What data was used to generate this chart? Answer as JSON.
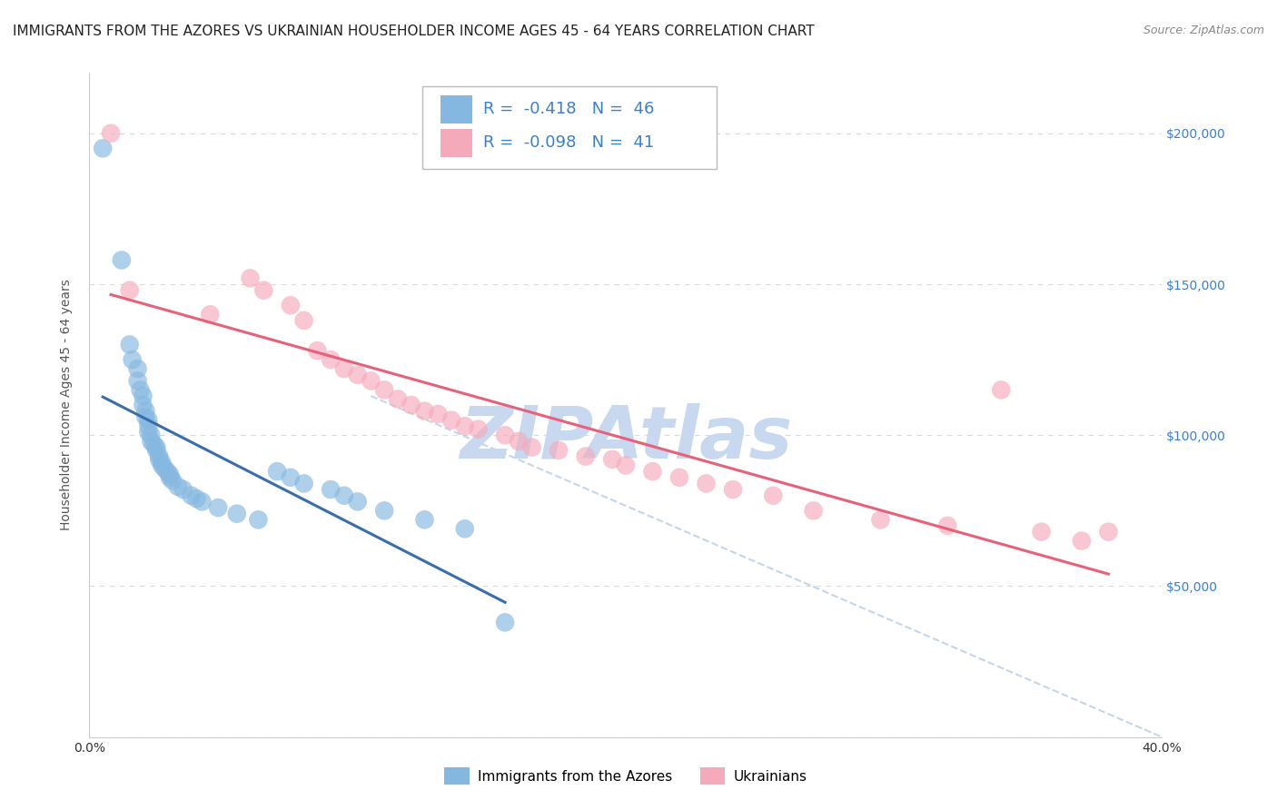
{
  "title": "IMMIGRANTS FROM THE AZORES VS UKRAINIAN HOUSEHOLDER INCOME AGES 45 - 64 YEARS CORRELATION CHART",
  "source": "Source: ZipAtlas.com",
  "ylabel": "Householder Income Ages 45 - 64 years",
  "xmin": 0.0,
  "xmax": 0.4,
  "ymin": 0,
  "ymax": 220000,
  "yticks": [
    0,
    50000,
    100000,
    150000,
    200000
  ],
  "ytick_labels": [
    "",
    "$50,000",
    "$100,000",
    "$150,000",
    "$200,000"
  ],
  "xticks": [
    0.0,
    0.05,
    0.1,
    0.15,
    0.2,
    0.25,
    0.3,
    0.35,
    0.4
  ],
  "xtick_labels": [
    "0.0%",
    "",
    "",
    "",
    "",
    "",
    "",
    "",
    "40.0%"
  ],
  "azores_color": "#85b8e0",
  "ukrainian_color": "#f5aabc",
  "azores_line_color": "#3a6eaa",
  "ukrainian_line_color": "#e8607a",
  "watermark": "ZIPAtlas",
  "watermark_color": "#c8d8ee",
  "background_color": "#ffffff",
  "grid_color": "#d0dce8",
  "azores_x": [
    0.005,
    0.012,
    0.015,
    0.016,
    0.018,
    0.018,
    0.019,
    0.02,
    0.02,
    0.021,
    0.021,
    0.022,
    0.022,
    0.022,
    0.023,
    0.023,
    0.024,
    0.025,
    0.025,
    0.026,
    0.026,
    0.027,
    0.027,
    0.028,
    0.029,
    0.03,
    0.03,
    0.031,
    0.033,
    0.035,
    0.038,
    0.04,
    0.042,
    0.048,
    0.055,
    0.063,
    0.07,
    0.075,
    0.08,
    0.09,
    0.095,
    0.1,
    0.11,
    0.125,
    0.14,
    0.155
  ],
  "azores_y": [
    195000,
    158000,
    130000,
    125000,
    122000,
    118000,
    115000,
    113000,
    110000,
    108000,
    106000,
    105000,
    103000,
    101000,
    100000,
    98000,
    97000,
    96000,
    95000,
    93000,
    92000,
    91000,
    90000,
    89000,
    88000,
    87000,
    86000,
    85000,
    83000,
    82000,
    80000,
    79000,
    78000,
    76000,
    74000,
    72000,
    88000,
    86000,
    84000,
    82000,
    80000,
    78000,
    75000,
    72000,
    69000,
    38000
  ],
  "ukrainian_x": [
    0.008,
    0.015,
    0.045,
    0.06,
    0.065,
    0.075,
    0.08,
    0.085,
    0.09,
    0.095,
    0.1,
    0.105,
    0.11,
    0.115,
    0.12,
    0.125,
    0.13,
    0.135,
    0.14,
    0.145,
    0.155,
    0.16,
    0.165,
    0.175,
    0.185,
    0.195,
    0.2,
    0.21,
    0.22,
    0.23,
    0.24,
    0.255,
    0.27,
    0.295,
    0.32,
    0.34,
    0.355,
    0.37,
    0.38
  ],
  "ukrainian_y": [
    200000,
    148000,
    140000,
    152000,
    148000,
    143000,
    138000,
    128000,
    125000,
    122000,
    120000,
    118000,
    115000,
    112000,
    110000,
    108000,
    107000,
    105000,
    103000,
    102000,
    100000,
    98000,
    96000,
    95000,
    93000,
    92000,
    90000,
    88000,
    86000,
    84000,
    82000,
    80000,
    75000,
    72000,
    70000,
    115000,
    68000,
    65000,
    68000
  ],
  "ref_line_x": [
    0.105,
    0.4
  ],
  "ref_line_y": [
    113000,
    0
  ],
  "title_fontsize": 11,
  "source_fontsize": 9,
  "label_fontsize": 10,
  "tick_fontsize": 10,
  "legend_fontsize": 13
}
